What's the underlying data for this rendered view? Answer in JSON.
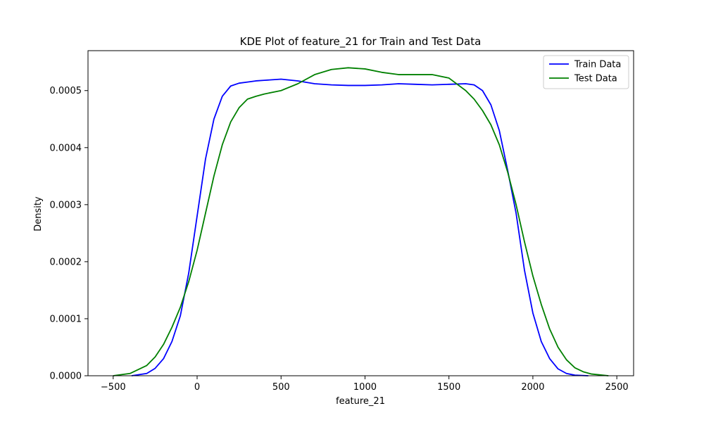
{
  "chart_data": {
    "type": "line",
    "title": "KDE Plot of feature_21 for Train and Test Data",
    "xlabel": "feature_21",
    "ylabel": "Density",
    "xlim": [
      -650,
      2600
    ],
    "ylim": [
      0,
      0.00057
    ],
    "xticks": [
      -500,
      0,
      500,
      1000,
      1500,
      2000,
      2500
    ],
    "xtick_labels": [
      "−500",
      "0",
      "500",
      "1000",
      "1500",
      "2000",
      "2500"
    ],
    "yticks": [
      0,
      0.0001,
      0.0002,
      0.0003,
      0.0004,
      0.0005
    ],
    "ytick_labels": [
      "0.0000",
      "0.0001",
      "0.0002",
      "0.0003",
      "0.0004",
      "0.0005"
    ],
    "grid": false,
    "legend_position": "top-right",
    "series": [
      {
        "name": "Train Data",
        "color": "#0000ff",
        "x": [
          -390,
          -300,
          -250,
          -200,
          -150,
          -100,
          -50,
          0,
          50,
          100,
          150,
          200,
          250,
          300,
          350,
          400,
          500,
          600,
          700,
          800,
          900,
          1000,
          1100,
          1200,
          1300,
          1400,
          1500,
          1600,
          1650,
          1700,
          1750,
          1800,
          1850,
          1900,
          1950,
          2000,
          2050,
          2100,
          2150,
          2200,
          2250,
          2330
        ],
        "y": [
          0.0,
          4e-06,
          1.3e-05,
          3e-05,
          6e-05,
          0.000105,
          0.00018,
          0.00028,
          0.00038,
          0.00045,
          0.00049,
          0.000508,
          0.000513,
          0.000515,
          0.000517,
          0.000518,
          0.00052,
          0.000517,
          0.000512,
          0.00051,
          0.000509,
          0.000509,
          0.00051,
          0.000512,
          0.000511,
          0.00051,
          0.000511,
          0.000512,
          0.00051,
          0.0005,
          0.000475,
          0.00043,
          0.00036,
          0.000285,
          0.000185,
          0.00011,
          6e-05,
          3e-05,
          1.2e-05,
          4e-06,
          1e-06,
          0.0
        ]
      },
      {
        "name": "Test Data",
        "color": "#008000",
        "x": [
          -500,
          -400,
          -300,
          -250,
          -200,
          -150,
          -100,
          -50,
          0,
          50,
          100,
          150,
          200,
          250,
          300,
          350,
          400,
          500,
          600,
          700,
          800,
          900,
          1000,
          1100,
          1200,
          1300,
          1400,
          1500,
          1600,
          1650,
          1700,
          1750,
          1800,
          1850,
          1900,
          1950,
          2000,
          2050,
          2100,
          2150,
          2200,
          2250,
          2300,
          2350,
          2450
        ],
        "y": [
          0.0,
          4e-06,
          1.8e-05,
          3.3e-05,
          5.5e-05,
          8.5e-05,
          0.00012,
          0.000165,
          0.00022,
          0.000285,
          0.00035,
          0.000405,
          0.000445,
          0.00047,
          0.000485,
          0.00049,
          0.000494,
          0.0005,
          0.000512,
          0.000528,
          0.000537,
          0.00054,
          0.000538,
          0.000532,
          0.000528,
          0.000528,
          0.000528,
          0.000522,
          0.0005,
          0.000485,
          0.000465,
          0.00044,
          0.000405,
          0.000357,
          0.0003,
          0.000235,
          0.000175,
          0.000125,
          8.2e-05,
          5e-05,
          2.8e-05,
          1.4e-05,
          7e-06,
          3e-06,
          0.0
        ]
      }
    ]
  }
}
